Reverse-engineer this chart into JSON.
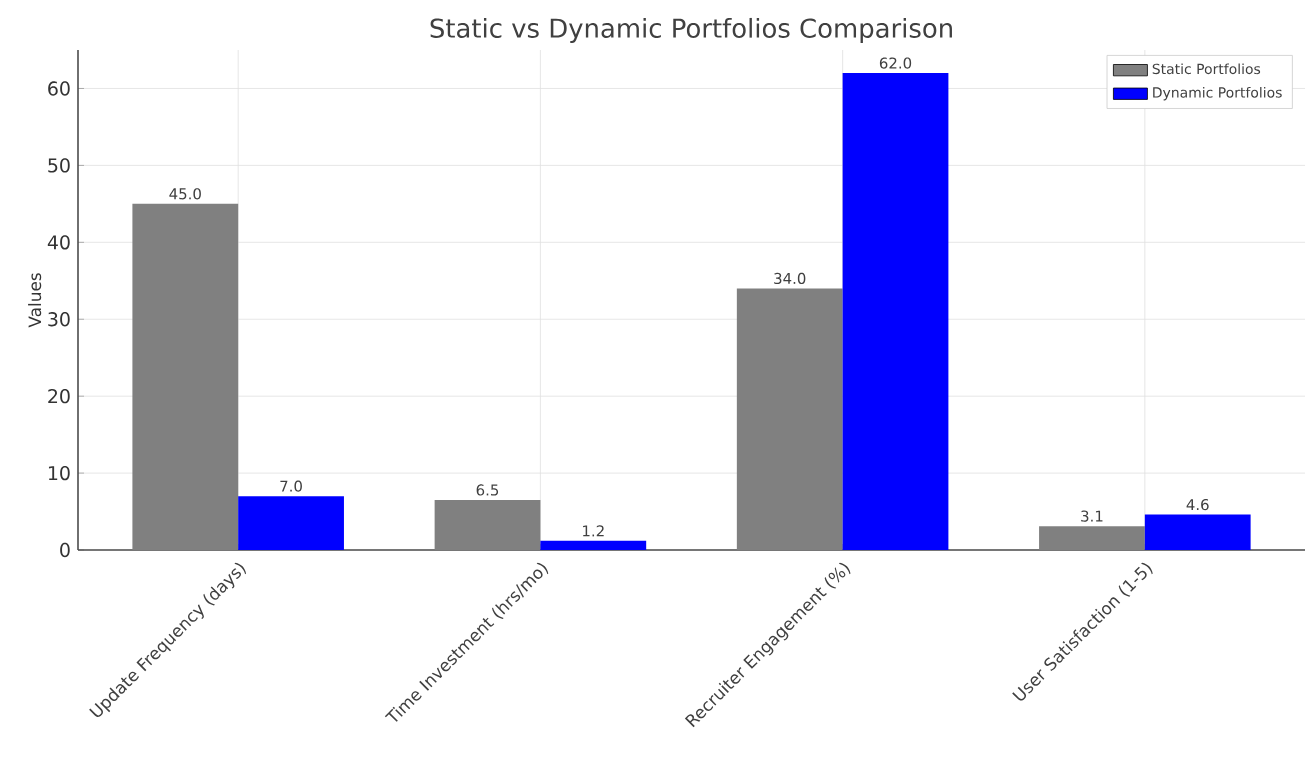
{
  "chart_data": {
    "type": "bar",
    "title": "Static vs Dynamic Portfolios Comparison",
    "ylabel": "Values",
    "categories": [
      "Update Frequency (days)",
      "Time Investment (hrs/mo)",
      "Recruiter Engagement (%)",
      "User Satisfaction (1-5)"
    ],
    "series": [
      {
        "name": "Static Portfolios",
        "color": "#808080",
        "values": [
          45.0,
          6.5,
          34.0,
          3.1
        ],
        "value_labels": [
          "45.0",
          "6.5",
          "34.0",
          "3.1"
        ]
      },
      {
        "name": "Dynamic Portfolios",
        "color": "#0000ff",
        "values": [
          7.0,
          1.2,
          62.0,
          4.6
        ],
        "value_labels": [
          "7.0",
          "1.2",
          "62.0",
          "4.6"
        ]
      }
    ],
    "ylim": [
      0,
      65
    ],
    "yticks": [
      0,
      10,
      20,
      30,
      40,
      50,
      60
    ],
    "grid": true,
    "legend": "top right"
  }
}
